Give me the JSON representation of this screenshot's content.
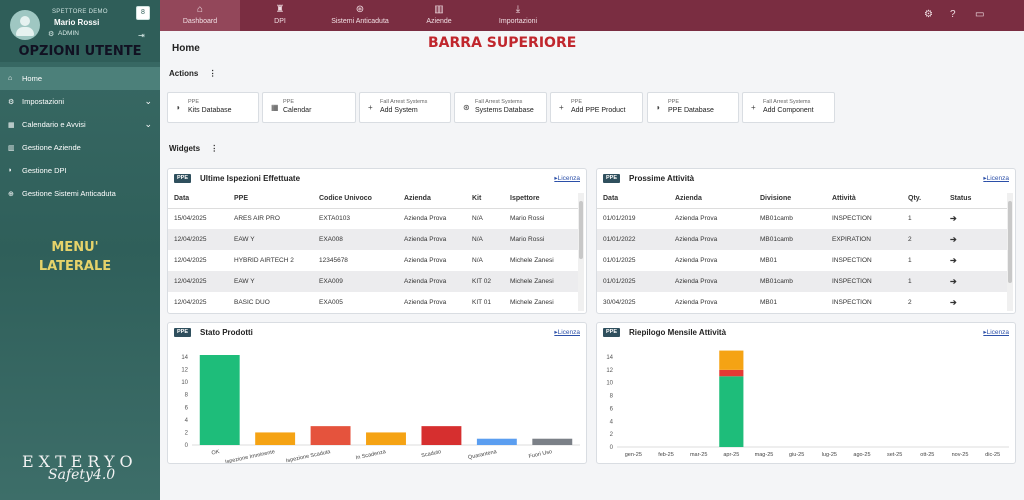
{
  "user": {
    "role": "SPETTORE DEMO",
    "name": "Mario Rossi",
    "level": "ADMIN",
    "badge": "8"
  },
  "annotations": {
    "user_options": "OPZIONI UTENTE",
    "side_menu_1": "MENU'",
    "side_menu_2": "LATERALE",
    "top_bar": "BARRA SUPERIORE"
  },
  "sidebar": {
    "items": [
      {
        "label": "Home",
        "icon": "home-icon"
      },
      {
        "label": "Impostazioni",
        "icon": "gears-icon"
      },
      {
        "label": "Calendario e Avvisi",
        "icon": "calendar-icon"
      },
      {
        "label": "Gestione Aziende",
        "icon": "building-icon"
      },
      {
        "label": "Gestione DPI",
        "icon": "shield-icon"
      },
      {
        "label": "Gestione Sistemi Anticaduta",
        "icon": "plus-circle-icon"
      }
    ]
  },
  "brand": {
    "line1": "EXTERYO",
    "line2": "Safety4.0"
  },
  "topbar": {
    "tabs": [
      {
        "label": "Dashboard",
        "icon": "home-icon"
      },
      {
        "label": "DPI",
        "icon": "shirt-icon"
      },
      {
        "label": "Sistemi Anticaduta",
        "icon": "lifebuoy-icon"
      },
      {
        "label": "Aziende",
        "icon": "building-icon"
      },
      {
        "label": "Importazioni",
        "icon": "download-icon"
      }
    ]
  },
  "page": {
    "title": "Home",
    "actions_title": "Actions",
    "widgets_title": "Widgets",
    "menu_dots": "⋮"
  },
  "actions": [
    {
      "sub": "PPE",
      "title": "Kits Database",
      "icon": "shield-icon"
    },
    {
      "sub": "PPE",
      "title": "Calendar",
      "icon": "calendar-icon"
    },
    {
      "sub": "Fall Arrest Systems",
      "title": "Add System",
      "icon": "plus-icon"
    },
    {
      "sub": "Fall Arrest Systems",
      "title": "Systems Database",
      "icon": "lifebuoy-icon"
    },
    {
      "sub": "PPE",
      "title": "Add PPE Product",
      "icon": "plus-icon"
    },
    {
      "sub": "PPE",
      "title": "PPE Database",
      "icon": "shield-icon"
    },
    {
      "sub": "Fall Arrest Systems",
      "title": "Add Component",
      "icon": "plus-icon"
    }
  ],
  "widgets": {
    "badge": "PPE",
    "license": "Licenza",
    "inspections": {
      "title": "Ultime Ispezioni Effettuate",
      "columns": [
        "Data",
        "PPE",
        "Codice Univoco",
        "Azienda",
        "Kit",
        "Ispettore"
      ],
      "rows": [
        [
          "15/04/2025",
          "ARES AIR PRO",
          "EXTA0103",
          "Azienda Prova",
          "N/A",
          "Mario Rossi"
        ],
        [
          "12/04/2025",
          "EAW Y",
          "EXA008",
          "Azienda Prova",
          "N/A",
          "Mario Rossi"
        ],
        [
          "12/04/2025",
          "HYBRID AIRTECH 2",
          "12345678",
          "Azienda Prova",
          "N/A",
          "Michele Zanesi"
        ],
        [
          "12/04/2025",
          "EAW Y",
          "EXA009",
          "Azienda Prova",
          "KIT 02",
          "Michele Zanesi"
        ],
        [
          "12/04/2025",
          "BASIC DUO",
          "EXA005",
          "Azienda Prova",
          "KIT 01",
          "Michele Zanesi"
        ]
      ]
    },
    "activities": {
      "title": "Prossime Attività",
      "columns": [
        "Data",
        "Azienda",
        "Divisione",
        "Attività",
        "Qty.",
        "Status"
      ],
      "rows": [
        [
          "01/01/2019",
          "Azienda Prova",
          "MB01camb",
          "INSPECTION",
          "1",
          "➔"
        ],
        [
          "01/01/2022",
          "Azienda Prova",
          "MB01camb",
          "EXPIRATION",
          "2",
          "➔"
        ],
        [
          "01/01/2025",
          "Azienda Prova",
          "MB01",
          "INSPECTION",
          "1",
          "➔"
        ],
        [
          "01/01/2025",
          "Azienda Prova",
          "MB01camb",
          "INSPECTION",
          "1",
          "➔"
        ],
        [
          "30/04/2025",
          "Azienda Prova",
          "MB01",
          "INSPECTION",
          "2",
          "➔"
        ]
      ]
    },
    "products_title": "Stato Prodotti",
    "monthly_title": "Riepilogo Mensile Attività"
  },
  "colors": {
    "sidebar": "#2f5e59",
    "topbar": "#7a2d41",
    "green": "#1ebd7a",
    "orange": "#f5a314",
    "red": "#e53935"
  },
  "chart_data": [
    {
      "type": "bar",
      "title": "Stato Prodotti",
      "categories": [
        "OK",
        "Ispezione Imminente",
        "Ispezione Scaduta",
        "In Scadenza",
        "Scaduto",
        "Quarantena",
        "Fuori Uso"
      ],
      "values": [
        15,
        2,
        3,
        2,
        3,
        1,
        1
      ],
      "colors": [
        "#1ebd7a",
        "#f5a314",
        "#e5533d",
        "#f5a314",
        "#d62f2f",
        "#5b9ef0",
        "#7b8087"
      ],
      "ylim": [
        0,
        14
      ],
      "yticks": [
        0,
        2,
        4,
        6,
        8,
        10,
        12,
        14
      ]
    },
    {
      "type": "bar",
      "title": "Riepilogo Mensile Attività",
      "categories": [
        "gen-25",
        "feb-25",
        "mar-25",
        "apr-25",
        "mag-25",
        "giu-25",
        "lug-25",
        "ago-25",
        "set-25",
        "ott-25",
        "nov-25",
        "dic-25"
      ],
      "stacked": true,
      "series": [
        {
          "color": "#1ebd7a",
          "values": [
            0,
            0,
            0,
            11,
            0,
            0,
            0,
            0,
            0,
            0,
            0,
            0
          ]
        },
        {
          "color": "#e53935",
          "values": [
            0,
            0,
            0,
            1,
            0,
            0,
            0,
            0,
            0,
            0,
            0,
            0
          ]
        },
        {
          "color": "#f5a314",
          "values": [
            0,
            0,
            0,
            3,
            0,
            0,
            0,
            0,
            0,
            0,
            0,
            0
          ]
        }
      ],
      "ylim": [
        0,
        14
      ],
      "yticks": [
        0,
        2,
        4,
        6,
        8,
        10,
        12,
        14
      ]
    }
  ]
}
